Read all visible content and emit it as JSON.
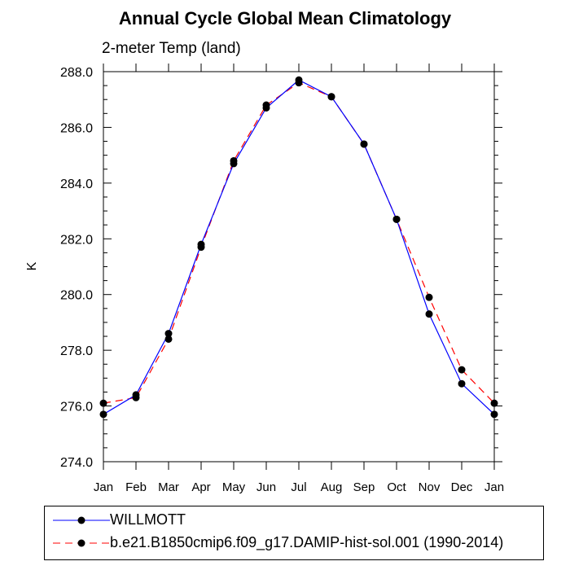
{
  "chart_data": {
    "type": "line",
    "title": "Annual Cycle Global Mean Climatology",
    "subtitle": "2-meter Temp (land)",
    "xlabel": "",
    "ylabel": "K",
    "categories": [
      "Jan",
      "Feb",
      "Mar",
      "Apr",
      "May",
      "Jun",
      "Jul",
      "Aug",
      "Sep",
      "Oct",
      "Nov",
      "Dec",
      "Jan"
    ],
    "ylim": [
      274.0,
      288.0
    ],
    "yticks": [
      "274.0",
      "276.0",
      "278.0",
      "280.0",
      "282.0",
      "284.0",
      "286.0",
      "288.0"
    ],
    "grid": false,
    "legend_position": "bottom",
    "series": [
      {
        "name": "WILLMOTT",
        "color": "#0000ff",
        "dash": "solid",
        "marker": "filled-circle",
        "values": [
          275.7,
          276.4,
          278.6,
          281.8,
          284.7,
          286.7,
          287.7,
          287.1,
          285.4,
          282.7,
          279.3,
          276.8,
          275.7
        ]
      },
      {
        "name": "b.e21.B1850cmip6.f09_g17.DAMIP-hist-sol.001 (1990-2014)",
        "color": "#ff0000",
        "dash": "dashed",
        "marker": "filled-circle",
        "values": [
          276.1,
          276.3,
          278.4,
          281.7,
          284.8,
          286.8,
          287.6,
          287.1,
          285.4,
          282.7,
          279.9,
          277.3,
          276.1
        ]
      }
    ]
  }
}
